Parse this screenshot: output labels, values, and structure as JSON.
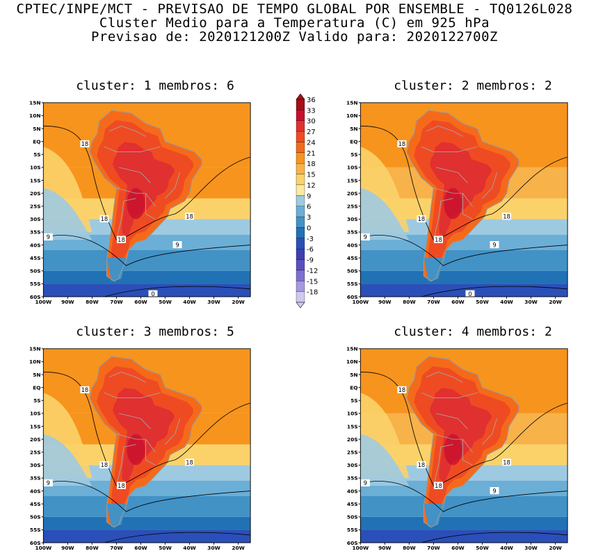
{
  "header": {
    "line1": "CPTEC/INPE/MCT - PREVISAO DE TEMPO GLOBAL POR ENSEMBLE - TQ0126L028",
    "line2": "Cluster Medio para a Temperatura (C) em 925 hPa",
    "line3": "Previsao de: 2020121200Z   Valido para: 2020122700Z"
  },
  "panels": [
    {
      "title": "cluster: 1   membros: 6",
      "contour_labels": [
        "18",
        "18",
        "18",
        "18",
        "9",
        "9",
        "0"
      ]
    },
    {
      "title": "cluster: 2   membros: 2",
      "contour_labels": [
        "18",
        "18",
        "18",
        "18",
        "9",
        "9",
        "0"
      ]
    },
    {
      "title": "cluster: 3   membros: 5",
      "contour_labels": [
        "18",
        "18",
        "18",
        "18",
        "9"
      ]
    },
    {
      "title": "cluster: 4   membros: 2",
      "contour_labels": [
        "18",
        "18",
        "18",
        "18",
        "9",
        "9"
      ]
    }
  ],
  "axes": {
    "lat_ticks": [
      "15N",
      "10N",
      "5N",
      "EQ",
      "5S",
      "10S",
      "15S",
      "20S",
      "25S",
      "30S",
      "35S",
      "40S",
      "45S",
      "50S",
      "55S",
      "60S"
    ],
    "lon_ticks": [
      "100W",
      "90W",
      "80W",
      "70W",
      "60W",
      "50W",
      "40W",
      "30W",
      "20W"
    ]
  },
  "colorbar": {
    "levels": [
      "36",
      "33",
      "30",
      "27",
      "24",
      "21",
      "18",
      "15",
      "12",
      "9",
      "6",
      "3",
      "0",
      "-3",
      "-6",
      "-9",
      "-12",
      "-15",
      "-18"
    ],
    "colors": [
      "#a50f15",
      "#c8102e",
      "#e03030",
      "#ef4b23",
      "#f56a1a",
      "#f7941d",
      "#f8b24a",
      "#fbd26a",
      "#fde9a0",
      "#9ecae1",
      "#6baed6",
      "#4292c6",
      "#2171b5",
      "#2b4fb8",
      "#3f3fb0",
      "#5a4fc0",
      "#7b6fd0",
      "#a699e0",
      "#d0c8f0"
    ]
  }
}
